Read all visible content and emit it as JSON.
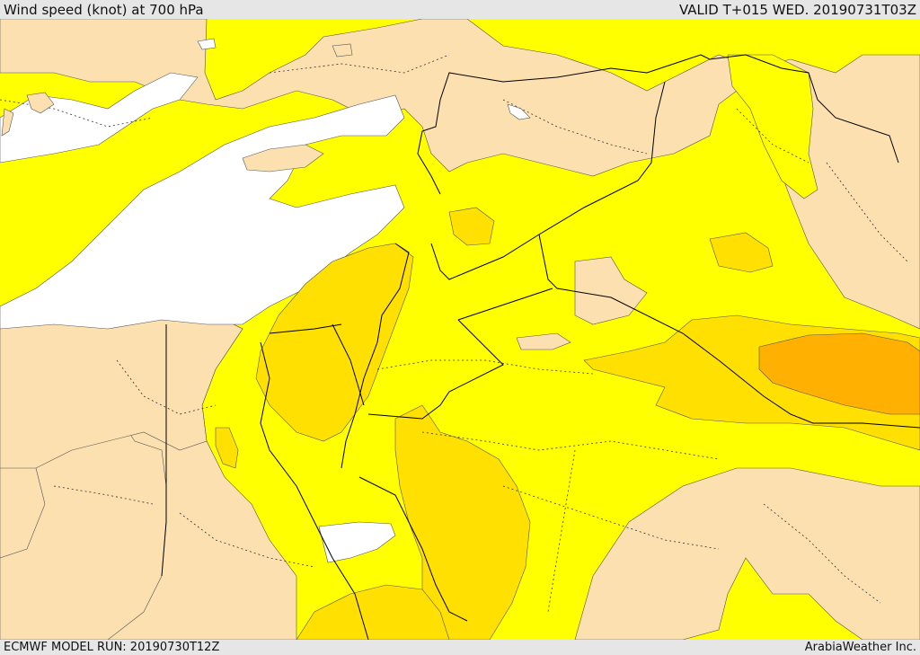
{
  "header": {
    "title": "Wind speed (knot) at 700 hPa",
    "valid": "VALID T+015 WED. 20190731T03Z"
  },
  "footer": {
    "model_run": "ECMWF MODEL RUN: 20190730T12Z",
    "brand": "ArabiaWeather Inc."
  },
  "map": {
    "colors": {
      "sea_white": "#ffffff",
      "land_tan": "#fde0b0",
      "wind_yellow": "#ffff00",
      "wind_gold": "#ffe000",
      "wind_orange": "#ffc000",
      "wind_deep": "#ffb000",
      "border": "#000000"
    }
  }
}
